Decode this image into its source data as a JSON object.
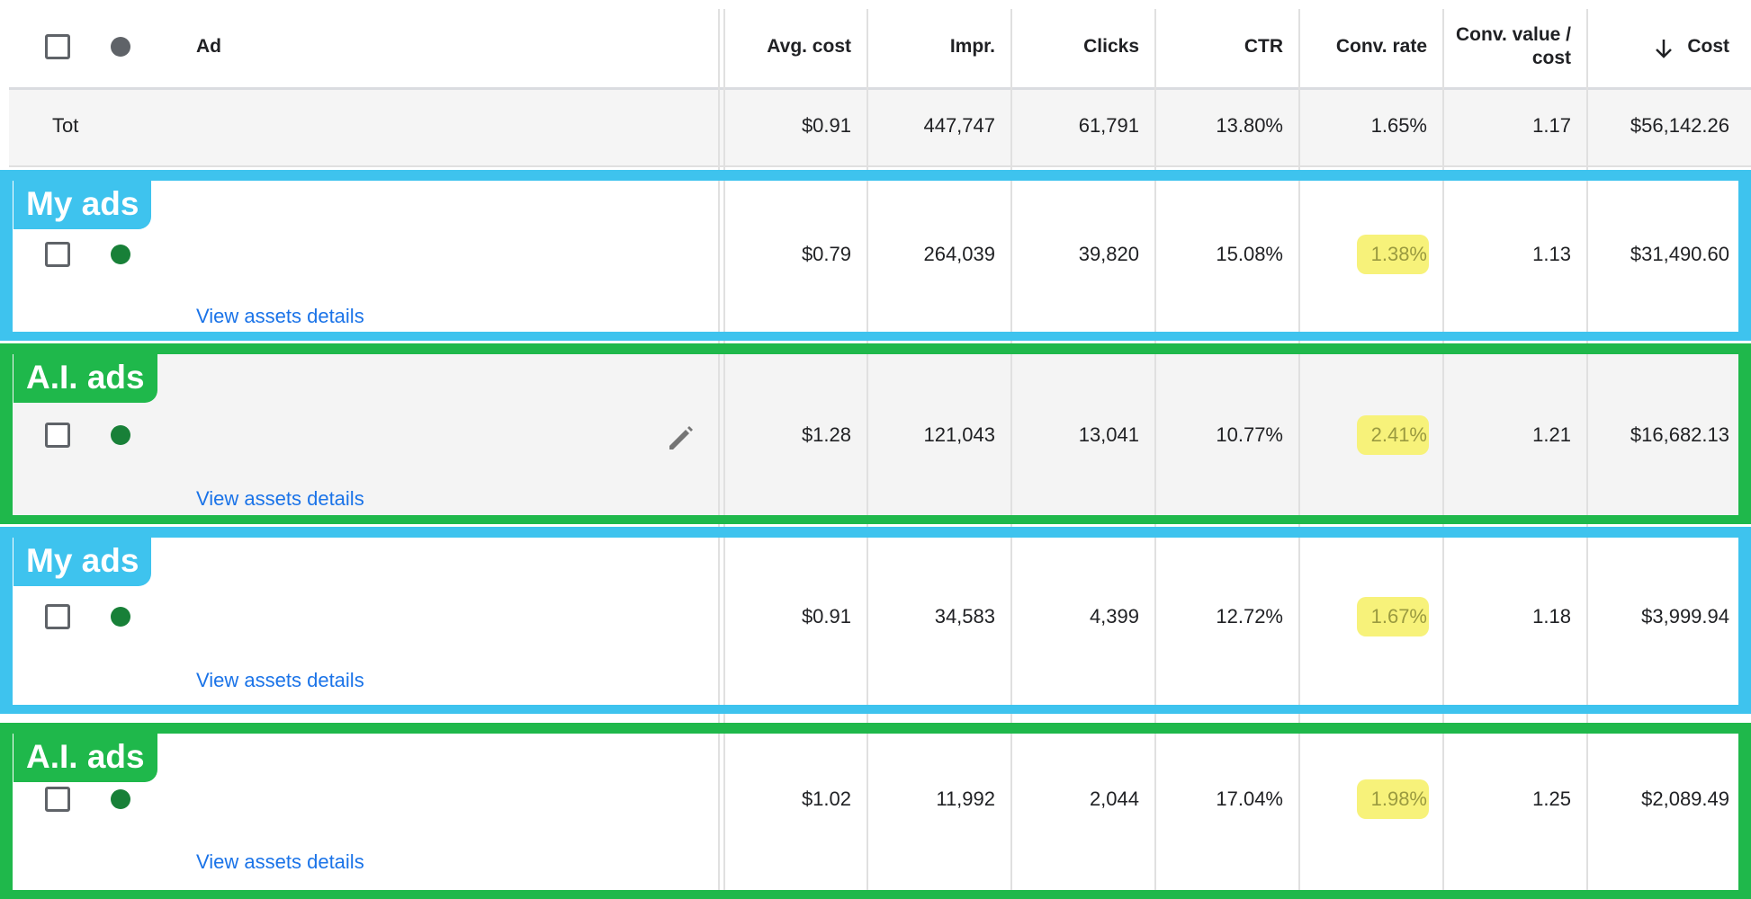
{
  "table": {
    "header": [
      "Ad",
      "Avg. cost",
      "Impr.",
      "Clicks",
      "CTR",
      "Conv. rate",
      "Conv. value / cost",
      "Cost"
    ],
    "total": {
      "label": "Tot",
      "values": [
        "$0.91",
        "447,747",
        "61,791",
        "13.80%",
        "1.65%",
        "1.17",
        "$56,142.26"
      ]
    },
    "rows": [
      {
        "group": "My ads",
        "values": [
          "$0.79",
          "264,039",
          "39,820",
          "15.08%",
          "1.38%",
          "1.13",
          "$31,490.60"
        ],
        "link": "View assets details"
      },
      {
        "group": "A.I. ads",
        "values": [
          "$1.28",
          "121,043",
          "13,041",
          "10.77%",
          "2.41%",
          "1.21",
          "$16,682.13"
        ],
        "link": "View assets details"
      },
      {
        "group": "My ads",
        "values": [
          "$0.91",
          "34,583",
          "4,399",
          "12.72%",
          "1.67%",
          "1.18",
          "$3,999.94"
        ],
        "link": "View assets details"
      },
      {
        "group": "A.I. ads",
        "values": [
          "$1.02",
          "11,992",
          "2,044",
          "17.04%",
          "1.98%",
          "1.25",
          "$2,089.49"
        ],
        "link": "View assets details"
      }
    ]
  }
}
